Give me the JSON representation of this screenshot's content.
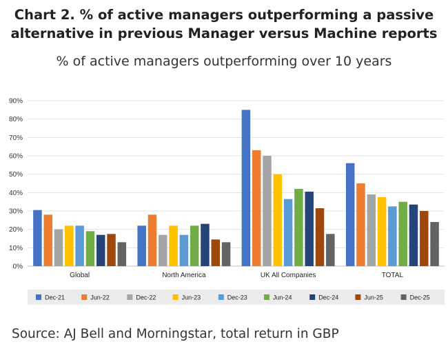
{
  "header": {
    "title_line1": "Chart 2. % of active managers outperforming a passive",
    "title_line2": "alternative in previous Manager versus Machine reports",
    "subtitle": "% of active managers outperforming over 10 years"
  },
  "footer": {
    "source": "Source: AJ Bell and Morningstar, total return in GBP"
  },
  "chart_data": {
    "type": "bar",
    "title": "% of active managers outperforming over 10 years",
    "xlabel": "",
    "ylabel": "",
    "ylim": [
      0,
      90
    ],
    "yticks": [
      "0%",
      "10%",
      "20%",
      "30%",
      "40%",
      "50%",
      "60%",
      "70%",
      "80%",
      "90%"
    ],
    "grid": true,
    "legend": "bottom",
    "categories": [
      "Global",
      "North America",
      "UK All Companies",
      "TOTAL"
    ],
    "series": [
      {
        "name": "Dec-21",
        "color": "#4472C4",
        "values": [
          30.5,
          22,
          85,
          56
        ]
      },
      {
        "name": "Jun-22",
        "color": "#ED7D31",
        "values": [
          28,
          28,
          63,
          45
        ]
      },
      {
        "name": "Dec-22",
        "color": "#A5A5A5",
        "values": [
          20,
          17,
          60,
          39
        ]
      },
      {
        "name": "Jun-23",
        "color": "#FFC000",
        "values": [
          22,
          22,
          50,
          37.5
        ]
      },
      {
        "name": "Dec-23",
        "color": "#5B9BD5",
        "values": [
          22,
          17,
          36.5,
          32.5
        ]
      },
      {
        "name": "Jun-24",
        "color": "#70AD47",
        "values": [
          19,
          22,
          42,
          35
        ]
      },
      {
        "name": "Dec-24",
        "color": "#264478",
        "values": [
          17,
          23,
          40.5,
          33.5
        ]
      },
      {
        "name": "Jun-25",
        "color": "#9E480E",
        "values": [
          17.5,
          14.5,
          31.5,
          30
        ]
      },
      {
        "name": "Dec-25",
        "color": "#636363",
        "values": [
          13,
          13,
          17.5,
          24
        ]
      }
    ]
  }
}
